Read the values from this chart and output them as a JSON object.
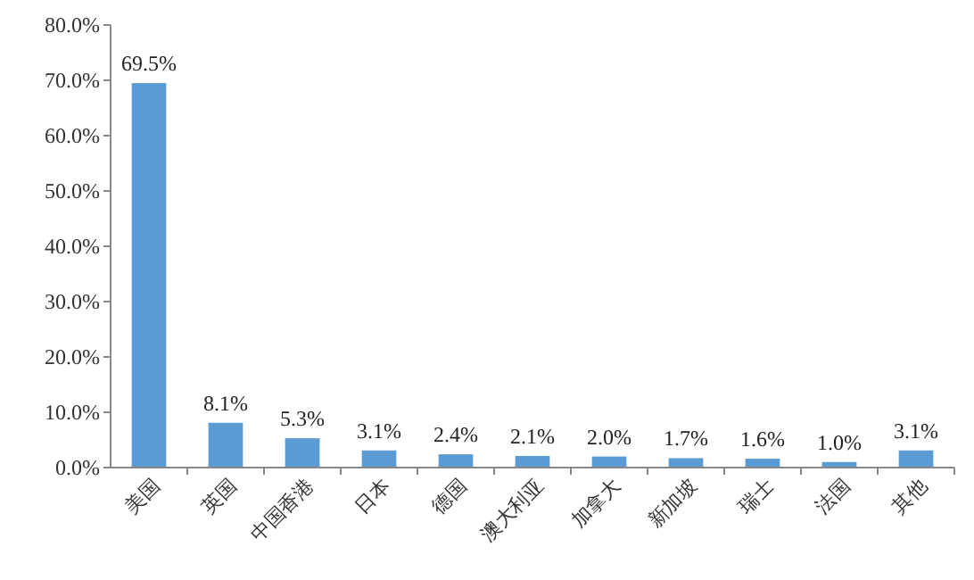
{
  "chart_data": {
    "type": "bar",
    "categories": [
      "美国",
      "英国",
      "中国香港",
      "日本",
      "德国",
      "澳大利亚",
      "加拿大",
      "新加坡",
      "瑞士",
      "法国",
      "其他"
    ],
    "values": [
      69.5,
      8.1,
      5.3,
      3.1,
      2.4,
      2.1,
      2.0,
      1.7,
      1.6,
      1.0,
      3.1
    ],
    "value_labels": [
      "69.5%",
      "8.1%",
      "5.3%",
      "3.1%",
      "2.4%",
      "2.1%",
      "2.0%",
      "1.7%",
      "1.6%",
      "1.0%",
      "3.1%"
    ],
    "color": "#5b9bd5",
    "ylim": [
      0,
      80
    ],
    "yticks": [
      {
        "value": 0,
        "label": "0.0%"
      },
      {
        "value": 10,
        "label": "10.0%"
      },
      {
        "value": 20,
        "label": "20.0%"
      },
      {
        "value": 30,
        "label": "30.0%"
      },
      {
        "value": 40,
        "label": "40.0%"
      },
      {
        "value": 50,
        "label": "50.0%"
      },
      {
        "value": 60,
        "label": "60.0%"
      },
      {
        "value": 70,
        "label": "70.0%"
      },
      {
        "value": 80,
        "label": "80.0%"
      }
    ],
    "grid": false
  }
}
